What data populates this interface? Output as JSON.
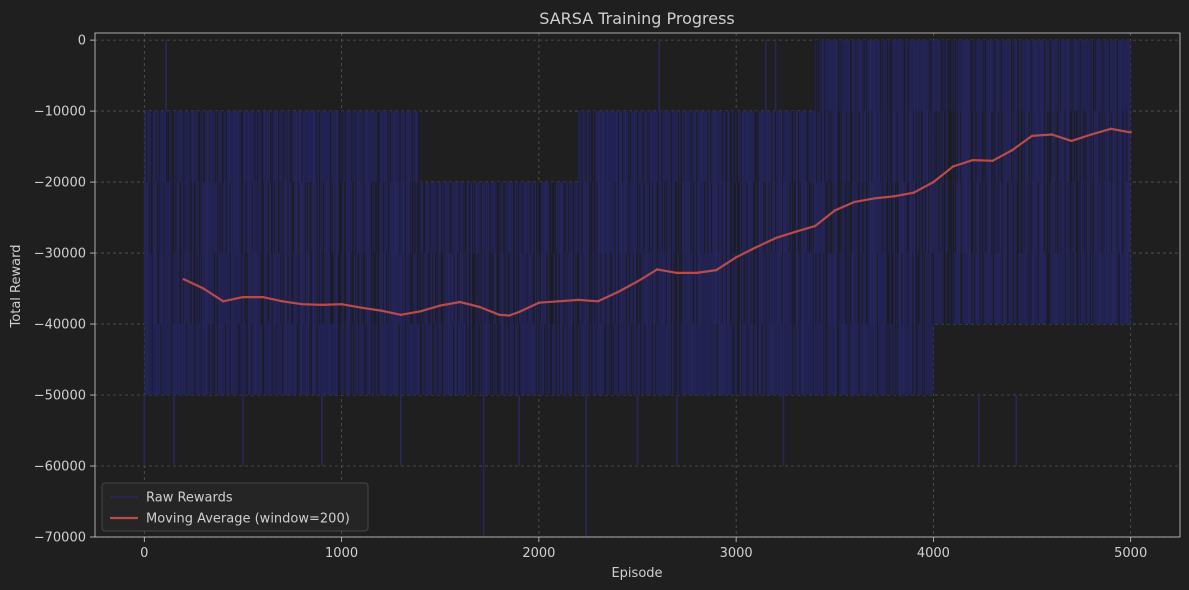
{
  "chart_data": {
    "type": "line",
    "title": "SARSA Training Progress",
    "xlabel": "Episode",
    "ylabel": "Total Reward",
    "xlim": [
      -250,
      5250
    ],
    "ylim": [
      -70000,
      1000
    ],
    "x_ticks": [
      0,
      1000,
      2000,
      3000,
      4000,
      5000
    ],
    "x_tick_labels": [
      "0",
      "1000",
      "2000",
      "3000",
      "4000",
      "5000"
    ],
    "y_ticks": [
      0,
      -10000,
      -20000,
      -30000,
      -40000,
      -50000,
      -60000,
      -70000
    ],
    "y_tick_labels": [
      "0",
      "−10000",
      "−20000",
      "−30000",
      "−40000",
      "−50000",
      "−60000",
      "−70000"
    ],
    "grid": true,
    "legend_position": "lower-left",
    "colors": {
      "background": "#1f1f1f",
      "plot_background": "#1f1f1f",
      "raw": "#27275c",
      "raw_fill": "#222250",
      "moving_avg": "#b84b4b",
      "grid": "#555555",
      "text": "#cfcfcf",
      "spine": "#cfcfcf"
    },
    "series": [
      {
        "name": "Raw Rewards",
        "kind": "raw_band",
        "x_range": [
          0,
          5000
        ],
        "segments": [
          {
            "x": [
              0,
              1400
            ],
            "min": -50000,
            "max": -10000
          },
          {
            "x": [
              1400,
              2200
            ],
            "min": -50000,
            "max": -20000
          },
          {
            "x": [
              2200,
              2800
            ],
            "min": -50000,
            "max": -10000
          },
          {
            "x": [
              2800,
              3400
            ],
            "min": -50000,
            "max": -10000
          },
          {
            "x": [
              3400,
              4000
            ],
            "min": -50000,
            "max": 0
          },
          {
            "x": [
              4000,
              5000
            ],
            "min": -40000,
            "max": 0
          }
        ],
        "spikes": [
          {
            "x": 110,
            "y": 0
          },
          {
            "x": 2610,
            "y": 0
          },
          {
            "x": 1720,
            "y": -70000
          },
          {
            "x": 2240,
            "y": -70000
          },
          {
            "x": 3150,
            "y": 0
          },
          {
            "x": 3200,
            "y": 0
          },
          {
            "x": 4230,
            "y": -60000
          },
          {
            "x": 4420,
            "y": -60000
          },
          {
            "x": 0,
            "y": -60000
          },
          {
            "x": 150,
            "y": -60000
          },
          {
            "x": 500,
            "y": -60000
          },
          {
            "x": 900,
            "y": -60000
          },
          {
            "x": 1300,
            "y": -60000
          },
          {
            "x": 1900,
            "y": -60000
          },
          {
            "x": 2500,
            "y": -60000
          },
          {
            "x": 2700,
            "y": -60000
          },
          {
            "x": 3240,
            "y": -60000
          }
        ]
      },
      {
        "name": "Moving Average (window=200)",
        "kind": "line",
        "x": [
          200,
          300,
          400,
          500,
          600,
          700,
          800,
          900,
          1000,
          1100,
          1200,
          1300,
          1400,
          1500,
          1600,
          1700,
          1800,
          1850,
          1900,
          2000,
          2100,
          2200,
          2300,
          2400,
          2500,
          2600,
          2700,
          2800,
          2900,
          3000,
          3100,
          3200,
          3300,
          3400,
          3500,
          3600,
          3700,
          3800,
          3900,
          4000,
          4100,
          4200,
          4300,
          4400,
          4500,
          4600,
          4700,
          4800,
          4900,
          5000
        ],
        "y": [
          -33700,
          -35000,
          -36800,
          -36200,
          -36200,
          -36800,
          -37200,
          -37300,
          -37200,
          -37700,
          -38100,
          -38700,
          -38200,
          -37400,
          -36900,
          -37600,
          -38700,
          -38800,
          -38300,
          -37000,
          -36800,
          -36600,
          -36800,
          -35500,
          -34000,
          -32300,
          -32800,
          -32800,
          -32400,
          -30600,
          -29200,
          -27900,
          -27000,
          -26200,
          -24000,
          -22800,
          -22300,
          -22000,
          -21500,
          -20000,
          -17800,
          -16900,
          -17000,
          -15500,
          -13500,
          -13300,
          -14200,
          -13300,
          -12500,
          -13000
        ]
      }
    ]
  }
}
